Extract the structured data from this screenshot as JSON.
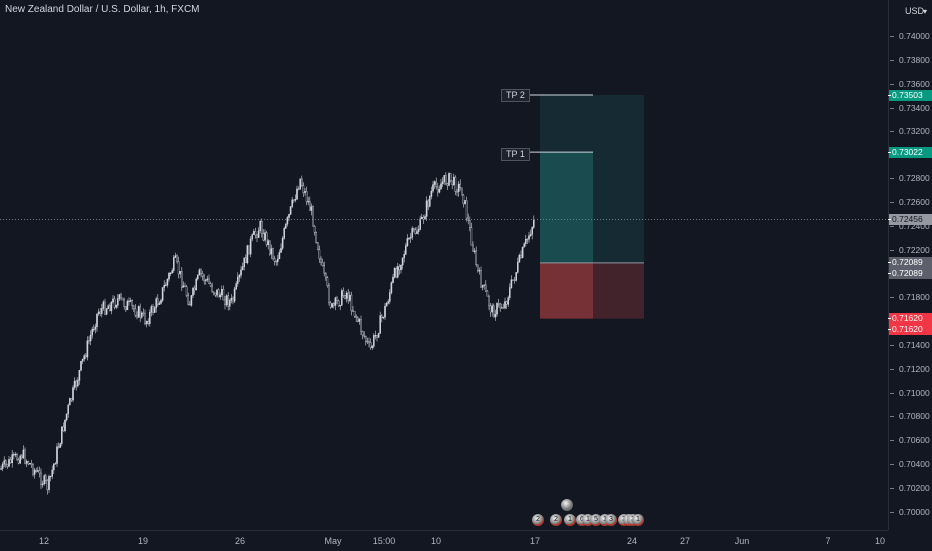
{
  "symbol": {
    "title": "New Zealand Dollar / U.S. Dollar, 1h, FXCM"
  },
  "axis": {
    "currency": "USD",
    "price_ticks": [
      "0.74000",
      "0.73800",
      "0.73600",
      "0.73400",
      "0.73200",
      "0.72800",
      "0.72600",
      "0.72400",
      "0.72200",
      "0.71800",
      "0.71400",
      "0.71200",
      "0.71000",
      "0.70800",
      "0.70600",
      "0.70400",
      "0.70200",
      "0.70000"
    ],
    "time_ticks": [
      "12",
      "19",
      "26",
      "May",
      "15:00",
      "10",
      "17",
      "24",
      "27",
      "Jun",
      "7",
      "10"
    ]
  },
  "price_labels": {
    "tp2": "0.73503",
    "tp1": "0.73022",
    "current": "0.72456",
    "entry_a": "0.72089",
    "entry_b": "0.72089",
    "stop_a": "0.71620",
    "stop_b": "0.71620"
  },
  "drawings": {
    "tp2_label": "TP 2",
    "tp1_label": "TP 1"
  },
  "event_marks": [
    "2",
    "2",
    "1",
    "6",
    "1",
    "5",
    "1",
    "3",
    "3",
    "3",
    "3",
    "1"
  ],
  "colors": {
    "background": "#131722",
    "candle": "#d1d4dc",
    "profit_zone": "#26a69a",
    "loss_zone": "#ef5350",
    "tp_label_bg": "#089981",
    "stop_label_bg": "#f23645",
    "current_label_bg": "#9598a1"
  },
  "chart_data": {
    "type": "candlestick",
    "title": "New Zealand Dollar / U.S. Dollar, 1h, FXCM",
    "ylim": [
      0.6995,
      0.7435
    ],
    "x_categories": [
      "12",
      "19",
      "26",
      "May",
      "15:00",
      "10",
      "17",
      "24",
      "27",
      "Jun",
      "7",
      "10"
    ],
    "key_points": [
      {
        "x": "11",
        "close": 0.7035
      },
      {
        "x": "12",
        "close": 0.7048
      },
      {
        "x": "13",
        "close": 0.702
      },
      {
        "x": "14",
        "close": 0.708
      },
      {
        "x": "15",
        "close": 0.7168
      },
      {
        "x": "16",
        "close": 0.7178
      },
      {
        "x": "17",
        "close": 0.7168
      },
      {
        "x": "18",
        "close": 0.716
      },
      {
        "x": "19",
        "close": 0.718
      },
      {
        "x": "20",
        "close": 0.721
      },
      {
        "x": "21",
        "close": 0.7175
      },
      {
        "x": "22",
        "close": 0.72
      },
      {
        "x": "23",
        "close": 0.7185
      },
      {
        "x": "24",
        "close": 0.7175
      },
      {
        "x": "25",
        "close": 0.7225
      },
      {
        "x": "26",
        "close": 0.724
      },
      {
        "x": "27",
        "close": 0.721
      },
      {
        "x": "28",
        "close": 0.728
      },
      {
        "x": "29",
        "close": 0.725
      },
      {
        "x": "30",
        "close": 0.72
      },
      {
        "x": "May",
        "close": 0.717
      },
      {
        "x": "May 2",
        "close": 0.7185
      },
      {
        "x": "May 3",
        "close": 0.7135
      },
      {
        "x": "15:00",
        "close": 0.717
      },
      {
        "x": "May 5",
        "close": 0.72
      },
      {
        "x": "May 6",
        "close": 0.723
      },
      {
        "x": "May 7",
        "close": 0.724
      },
      {
        "x": "May 8",
        "close": 0.727
      },
      {
        "x": "10",
        "close": 0.728
      },
      {
        "x": "May 11",
        "close": 0.727
      },
      {
        "x": "May 12",
        "close": 0.72
      },
      {
        "x": "May 13",
        "close": 0.7168
      },
      {
        "x": "May 14",
        "close": 0.7175
      },
      {
        "x": "17",
        "close": 0.7245
      }
    ],
    "position": {
      "entry": 0.72089,
      "take_profit_1": 0.73022,
      "take_profit_2": 0.73503,
      "stop_loss": 0.7162,
      "current": 0.72456
    }
  }
}
